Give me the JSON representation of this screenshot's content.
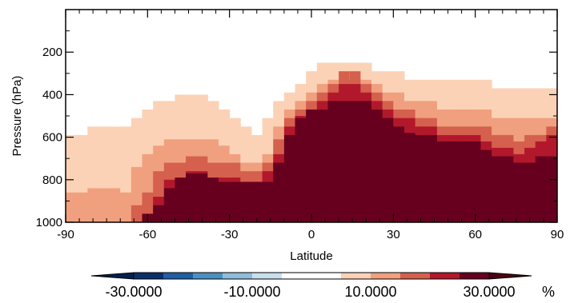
{
  "chart_data": {
    "type": "heatmap",
    "xlabel": "Latitude",
    "ylabel": "Pressure (hPa)",
    "xlim": [
      -90,
      90
    ],
    "ylim": [
      1000,
      0
    ],
    "x_ticks": [
      -90,
      -60,
      -30,
      0,
      30,
      60,
      90
    ],
    "x_tick_labels": [
      "-90",
      "-60",
      "-30",
      "0",
      "30",
      "60",
      "90"
    ],
    "y_ticks": [
      200,
      400,
      600,
      800,
      1000
    ],
    "y_tick_labels": [
      "200",
      "400",
      "600",
      "800",
      "1000"
    ],
    "grid": false,
    "colorbar": {
      "levels": [
        -30,
        -25,
        -20,
        -15,
        -10,
        -5,
        5,
        10,
        15,
        20,
        25,
        30
      ],
      "colors": [
        "#0a2f6b",
        "#1f5fa6",
        "#4c8fc2",
        "#8fbcd9",
        "#c9dfee",
        "#ffffff",
        "#fbd2b6",
        "#f0a07e",
        "#d5604e",
        "#b2182b",
        "#67001f"
      ],
      "extend": "both",
      "tick_labels": [
        "-30.0000",
        "-10.0000",
        "10.0000",
        "30.0000"
      ],
      "unit": "%"
    },
    "column_width_deg": 4,
    "columns": [
      {
        "lat": -88,
        "d1": 590,
        "d2": 860,
        "d3": null,
        "d4": null,
        "d5": null
      },
      {
        "lat": -84,
        "d1": 590,
        "d2": 860,
        "d3": null,
        "d4": null,
        "d5": null
      },
      {
        "lat": -80,
        "d1": 550,
        "d2": 840,
        "d3": null,
        "d4": null,
        "d5": null
      },
      {
        "lat": -76,
        "d1": 550,
        "d2": 840,
        "d3": null,
        "d4": null,
        "d5": null
      },
      {
        "lat": -72,
        "d1": 550,
        "d2": 840,
        "d3": null,
        "d4": null,
        "d5": null
      },
      {
        "lat": -68,
        "d1": 550,
        "d2": 860,
        "d3": null,
        "d4": null,
        "d5": null
      },
      {
        "lat": -64,
        "d1": 510,
        "d2": 740,
        "d3": 920,
        "d4": null,
        "d5": null
      },
      {
        "lat": -60,
        "d1": 470,
        "d2": 680,
        "d3": 860,
        "d4": null,
        "d5": 960
      },
      {
        "lat": -56,
        "d1": 430,
        "d2": 640,
        "d3": 760,
        "d4": 880,
        "d5": 920
      },
      {
        "lat": -52,
        "d1": 430,
        "d2": 610,
        "d3": 720,
        "d4": 800,
        "d5": 840
      },
      {
        "lat": -48,
        "d1": 400,
        "d2": 610,
        "d3": 720,
        "d4": 790,
        "d5": 790
      },
      {
        "lat": -44,
        "d1": 400,
        "d2": 610,
        "d3": 690,
        "d4": 760,
        "d5": 770
      },
      {
        "lat": -40,
        "d1": 400,
        "d2": 610,
        "d3": 690,
        "d4": 760,
        "d5": 770
      },
      {
        "lat": -36,
        "d1": 430,
        "d2": 610,
        "d3": 720,
        "d4": 790,
        "d5": 790
      },
      {
        "lat": -32,
        "d1": 470,
        "d2": 640,
        "d3": 720,
        "d4": 790,
        "d5": 810
      },
      {
        "lat": -28,
        "d1": 510,
        "d2": 680,
        "d3": 720,
        "d4": 790,
        "d5": 810
      },
      {
        "lat": -24,
        "d1": 550,
        "d2": 720,
        "d3": 760,
        "d4": 810,
        "d5": 810
      },
      {
        "lat": -20,
        "d1": 590,
        "d2": 720,
        "d3": 760,
        "d4": 810,
        "d5": 810
      },
      {
        "lat": -16,
        "d1": 510,
        "d2": 680,
        "d3": 720,
        "d4": 760,
        "d5": 810
      },
      {
        "lat": -12,
        "d1": 430,
        "d2": 550,
        "d3": 610,
        "d4": 680,
        "d5": 720
      },
      {
        "lat": -8,
        "d1": 390,
        "d2": 470,
        "d3": 510,
        "d4": 550,
        "d5": 590
      },
      {
        "lat": -4,
        "d1": 350,
        "d2": 430,
        "d3": 470,
        "d4": 500,
        "d5": 510
      },
      {
        "lat": 0,
        "d1": 290,
        "d2": 390,
        "d3": 430,
        "d4": 470,
        "d5": 470
      },
      {
        "lat": 4,
        "d1": 250,
        "d2": 350,
        "d3": 390,
        "d4": 430,
        "d5": 470
      },
      {
        "lat": 8,
        "d1": 250,
        "d2": 330,
        "d3": 350,
        "d4": 390,
        "d5": 430
      },
      {
        "lat": 12,
        "d1": 250,
        "d2": 330,
        "d3": 290,
        "d4": 350,
        "d5": 430
      },
      {
        "lat": 16,
        "d1": 250,
        "d2": 330,
        "d3": 290,
        "d4": 350,
        "d5": 430
      },
      {
        "lat": 20,
        "d1": 250,
        "d2": 330,
        "d3": 350,
        "d4": 390,
        "d5": 430
      },
      {
        "lat": 24,
        "d1": 290,
        "d2": 350,
        "d3": 390,
        "d4": 430,
        "d5": 470
      },
      {
        "lat": 28,
        "d1": 290,
        "d2": 390,
        "d3": 430,
        "d4": 470,
        "d5": 510
      },
      {
        "lat": 32,
        "d1": 290,
        "d2": 390,
        "d3": 470,
        "d4": 510,
        "d5": 550
      },
      {
        "lat": 36,
        "d1": 330,
        "d2": 430,
        "d3": 470,
        "d4": 510,
        "d5": 580
      },
      {
        "lat": 40,
        "d1": 330,
        "d2": 430,
        "d3": 510,
        "d4": 550,
        "d5": 590
      },
      {
        "lat": 44,
        "d1": 330,
        "d2": 430,
        "d3": 510,
        "d4": 550,
        "d5": 590
      },
      {
        "lat": 48,
        "d1": 330,
        "d2": 470,
        "d3": 550,
        "d4": 590,
        "d5": 620
      },
      {
        "lat": 52,
        "d1": 330,
        "d2": 470,
        "d3": 550,
        "d4": 590,
        "d5": 620
      },
      {
        "lat": 56,
        "d1": 330,
        "d2": 470,
        "d3": 550,
        "d4": 590,
        "d5": 620
      },
      {
        "lat": 60,
        "d1": 330,
        "d2": 470,
        "d3": 550,
        "d4": 590,
        "d5": 620
      },
      {
        "lat": 64,
        "d1": 330,
        "d2": 470,
        "d3": 550,
        "d4": 620,
        "d5": 660
      },
      {
        "lat": 68,
        "d1": 370,
        "d2": 510,
        "d3": 590,
        "d4": 650,
        "d5": 690
      },
      {
        "lat": 72,
        "d1": 370,
        "d2": 510,
        "d3": 590,
        "d4": 650,
        "d5": 690
      },
      {
        "lat": 76,
        "d1": 370,
        "d2": 510,
        "d3": 620,
        "d4": 680,
        "d5": 720
      },
      {
        "lat": 80,
        "d1": 370,
        "d2": 510,
        "d3": 590,
        "d4": 650,
        "d5": 720
      },
      {
        "lat": 84,
        "d1": 370,
        "d2": 510,
        "d3": 590,
        "d4": 620,
        "d5": 690
      },
      {
        "lat": 88,
        "d1": 370,
        "d2": 510,
        "d3": 550,
        "d4": 590,
        "d5": 690
      }
    ]
  }
}
